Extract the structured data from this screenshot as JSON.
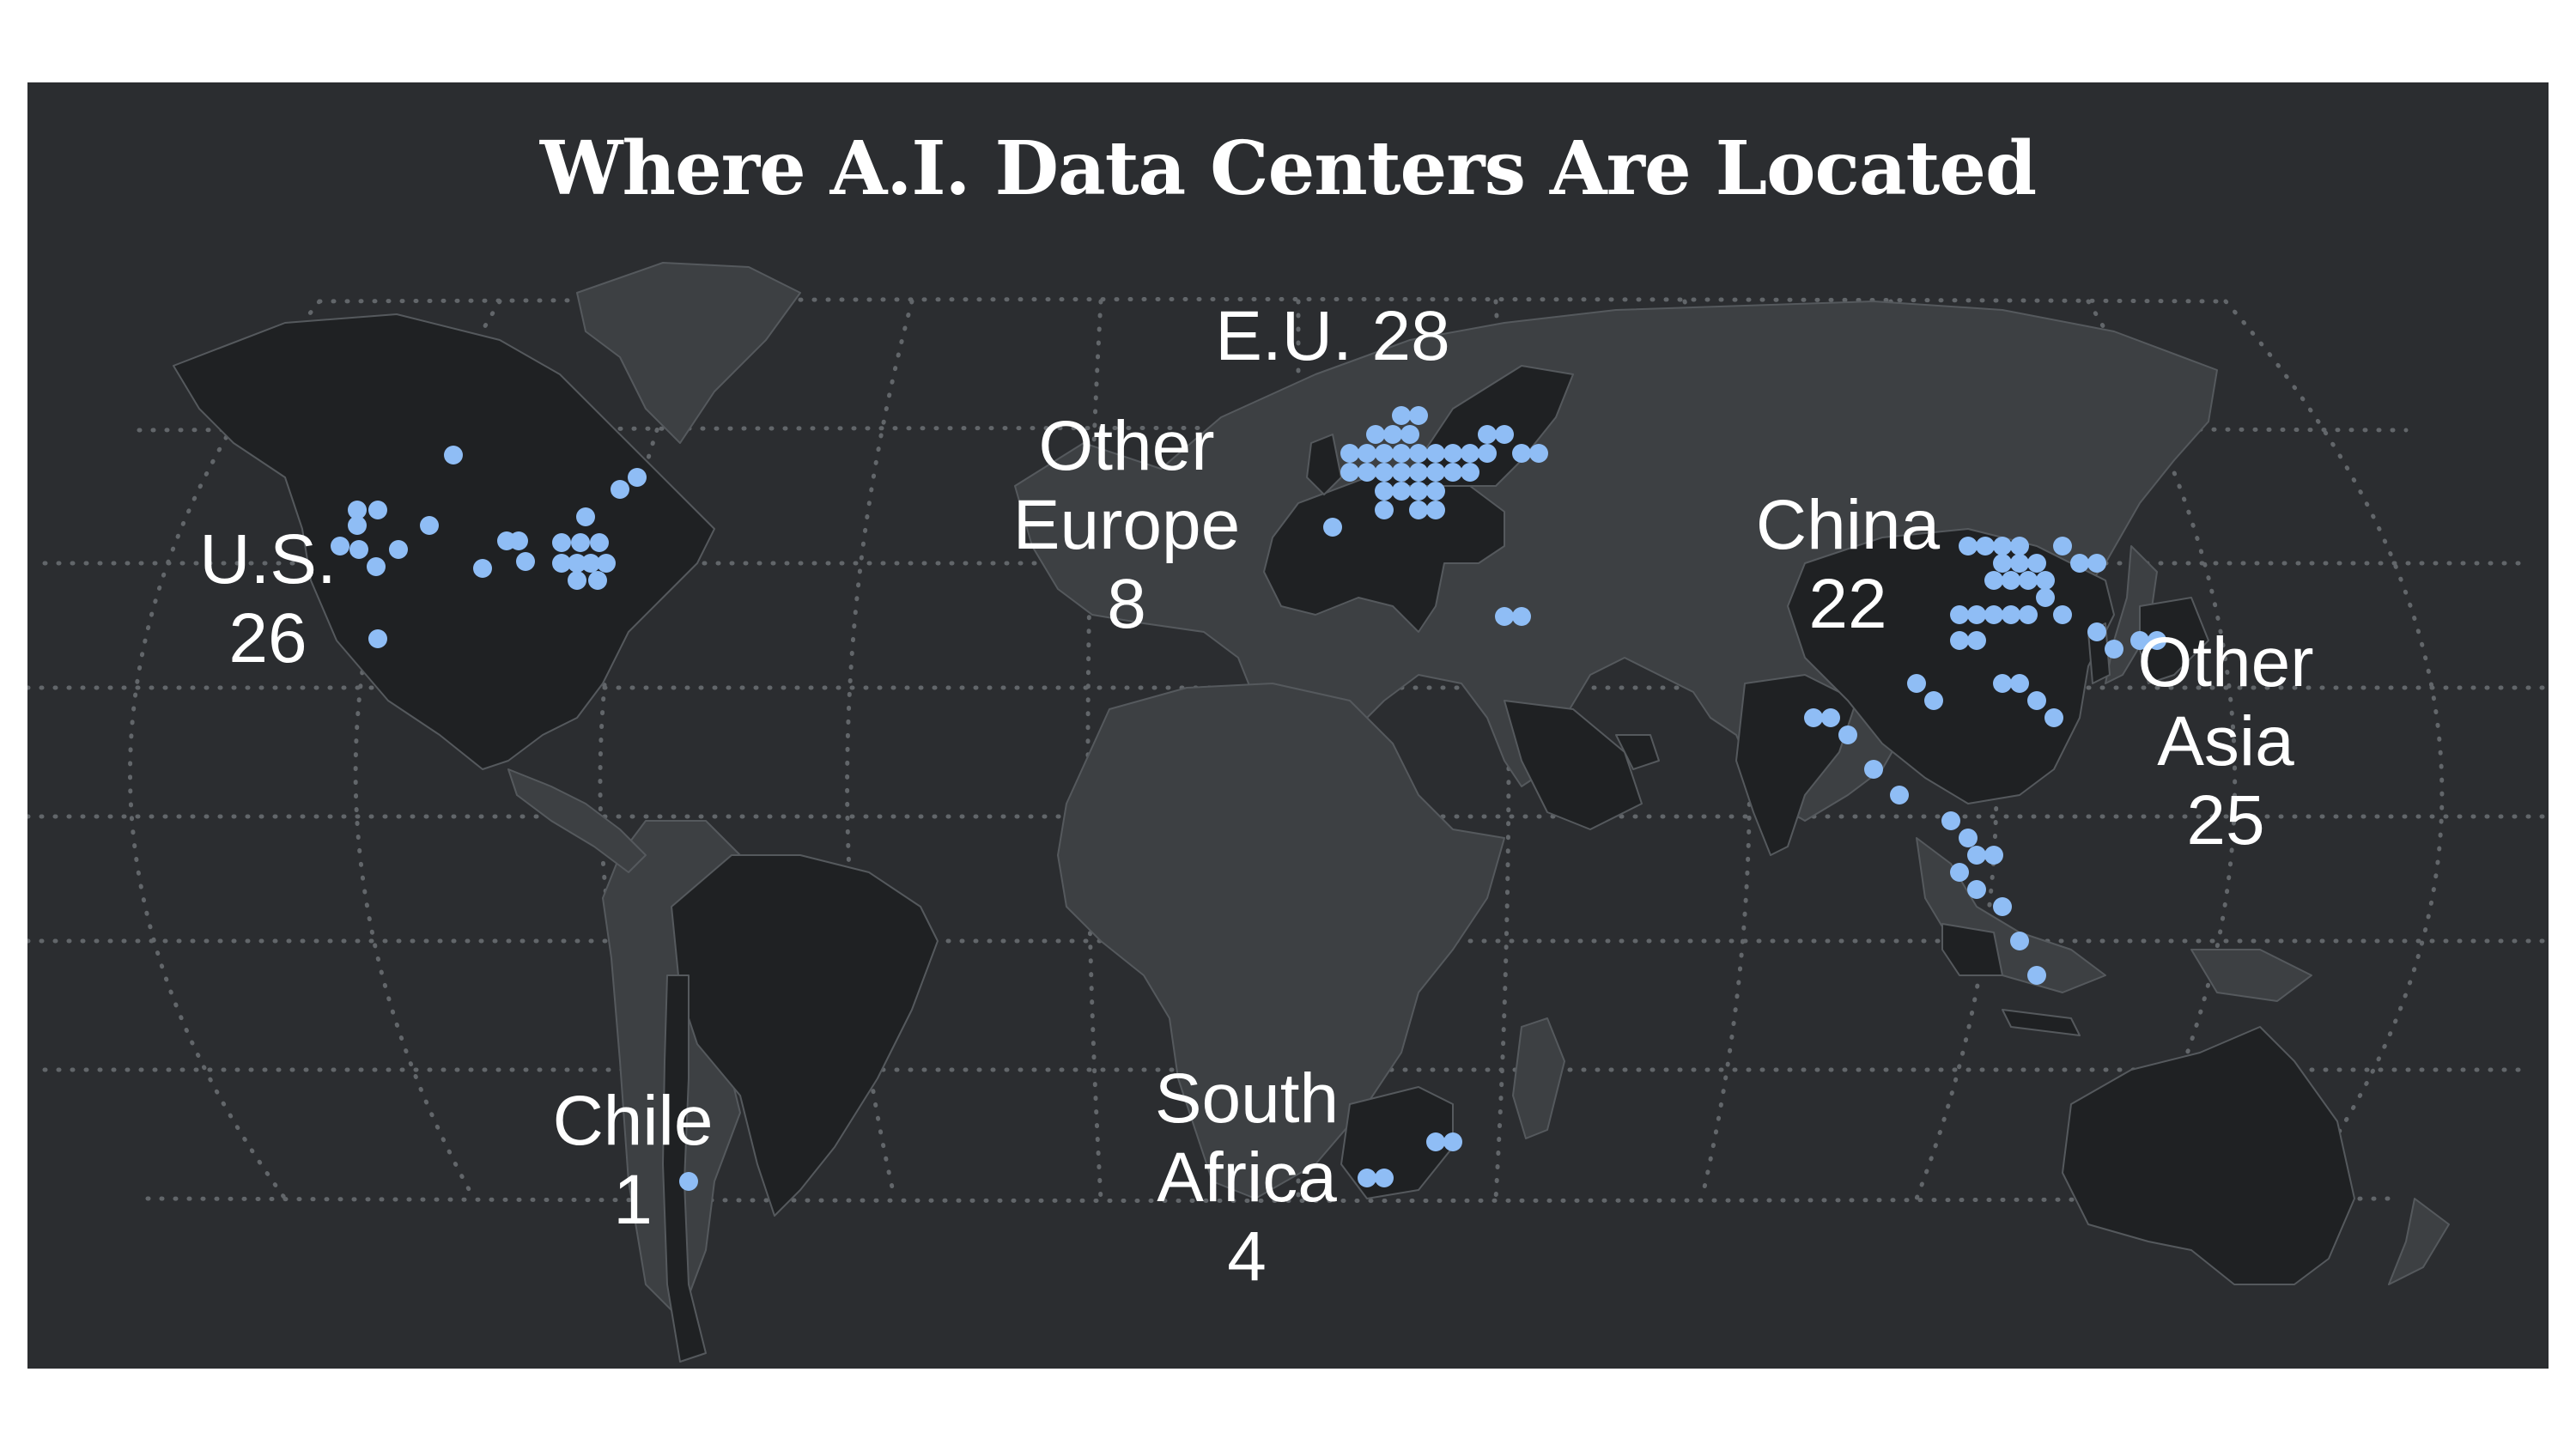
{
  "title": "Where A.I. Data Centers Are Located",
  "colors": {
    "background": "#2b2d30",
    "land_other": "#3d4043",
    "land_highlight": "#1f2123",
    "borders": "#55595d",
    "graticule": "#62666a",
    "dot": "#8fbdf5",
    "text": "#ffffff"
  },
  "regions": [
    {
      "id": "us",
      "name_lines": [
        "U.S."
      ],
      "count": 26
    },
    {
      "id": "eu",
      "name_lines": [
        "E.U."
      ],
      "count": 28
    },
    {
      "id": "other-europe",
      "name_lines": [
        "Other",
        "Europe"
      ],
      "count": 8
    },
    {
      "id": "china",
      "name_lines": [
        "China"
      ],
      "count": 22
    },
    {
      "id": "other-asia",
      "name_lines": [
        "Other",
        "Asia"
      ],
      "count": 25
    },
    {
      "id": "chile",
      "name_lines": [
        "Chile"
      ],
      "count": 1
    },
    {
      "id": "south-africa",
      "name_lines": [
        "South",
        "Africa"
      ],
      "count": 4
    }
  ]
}
